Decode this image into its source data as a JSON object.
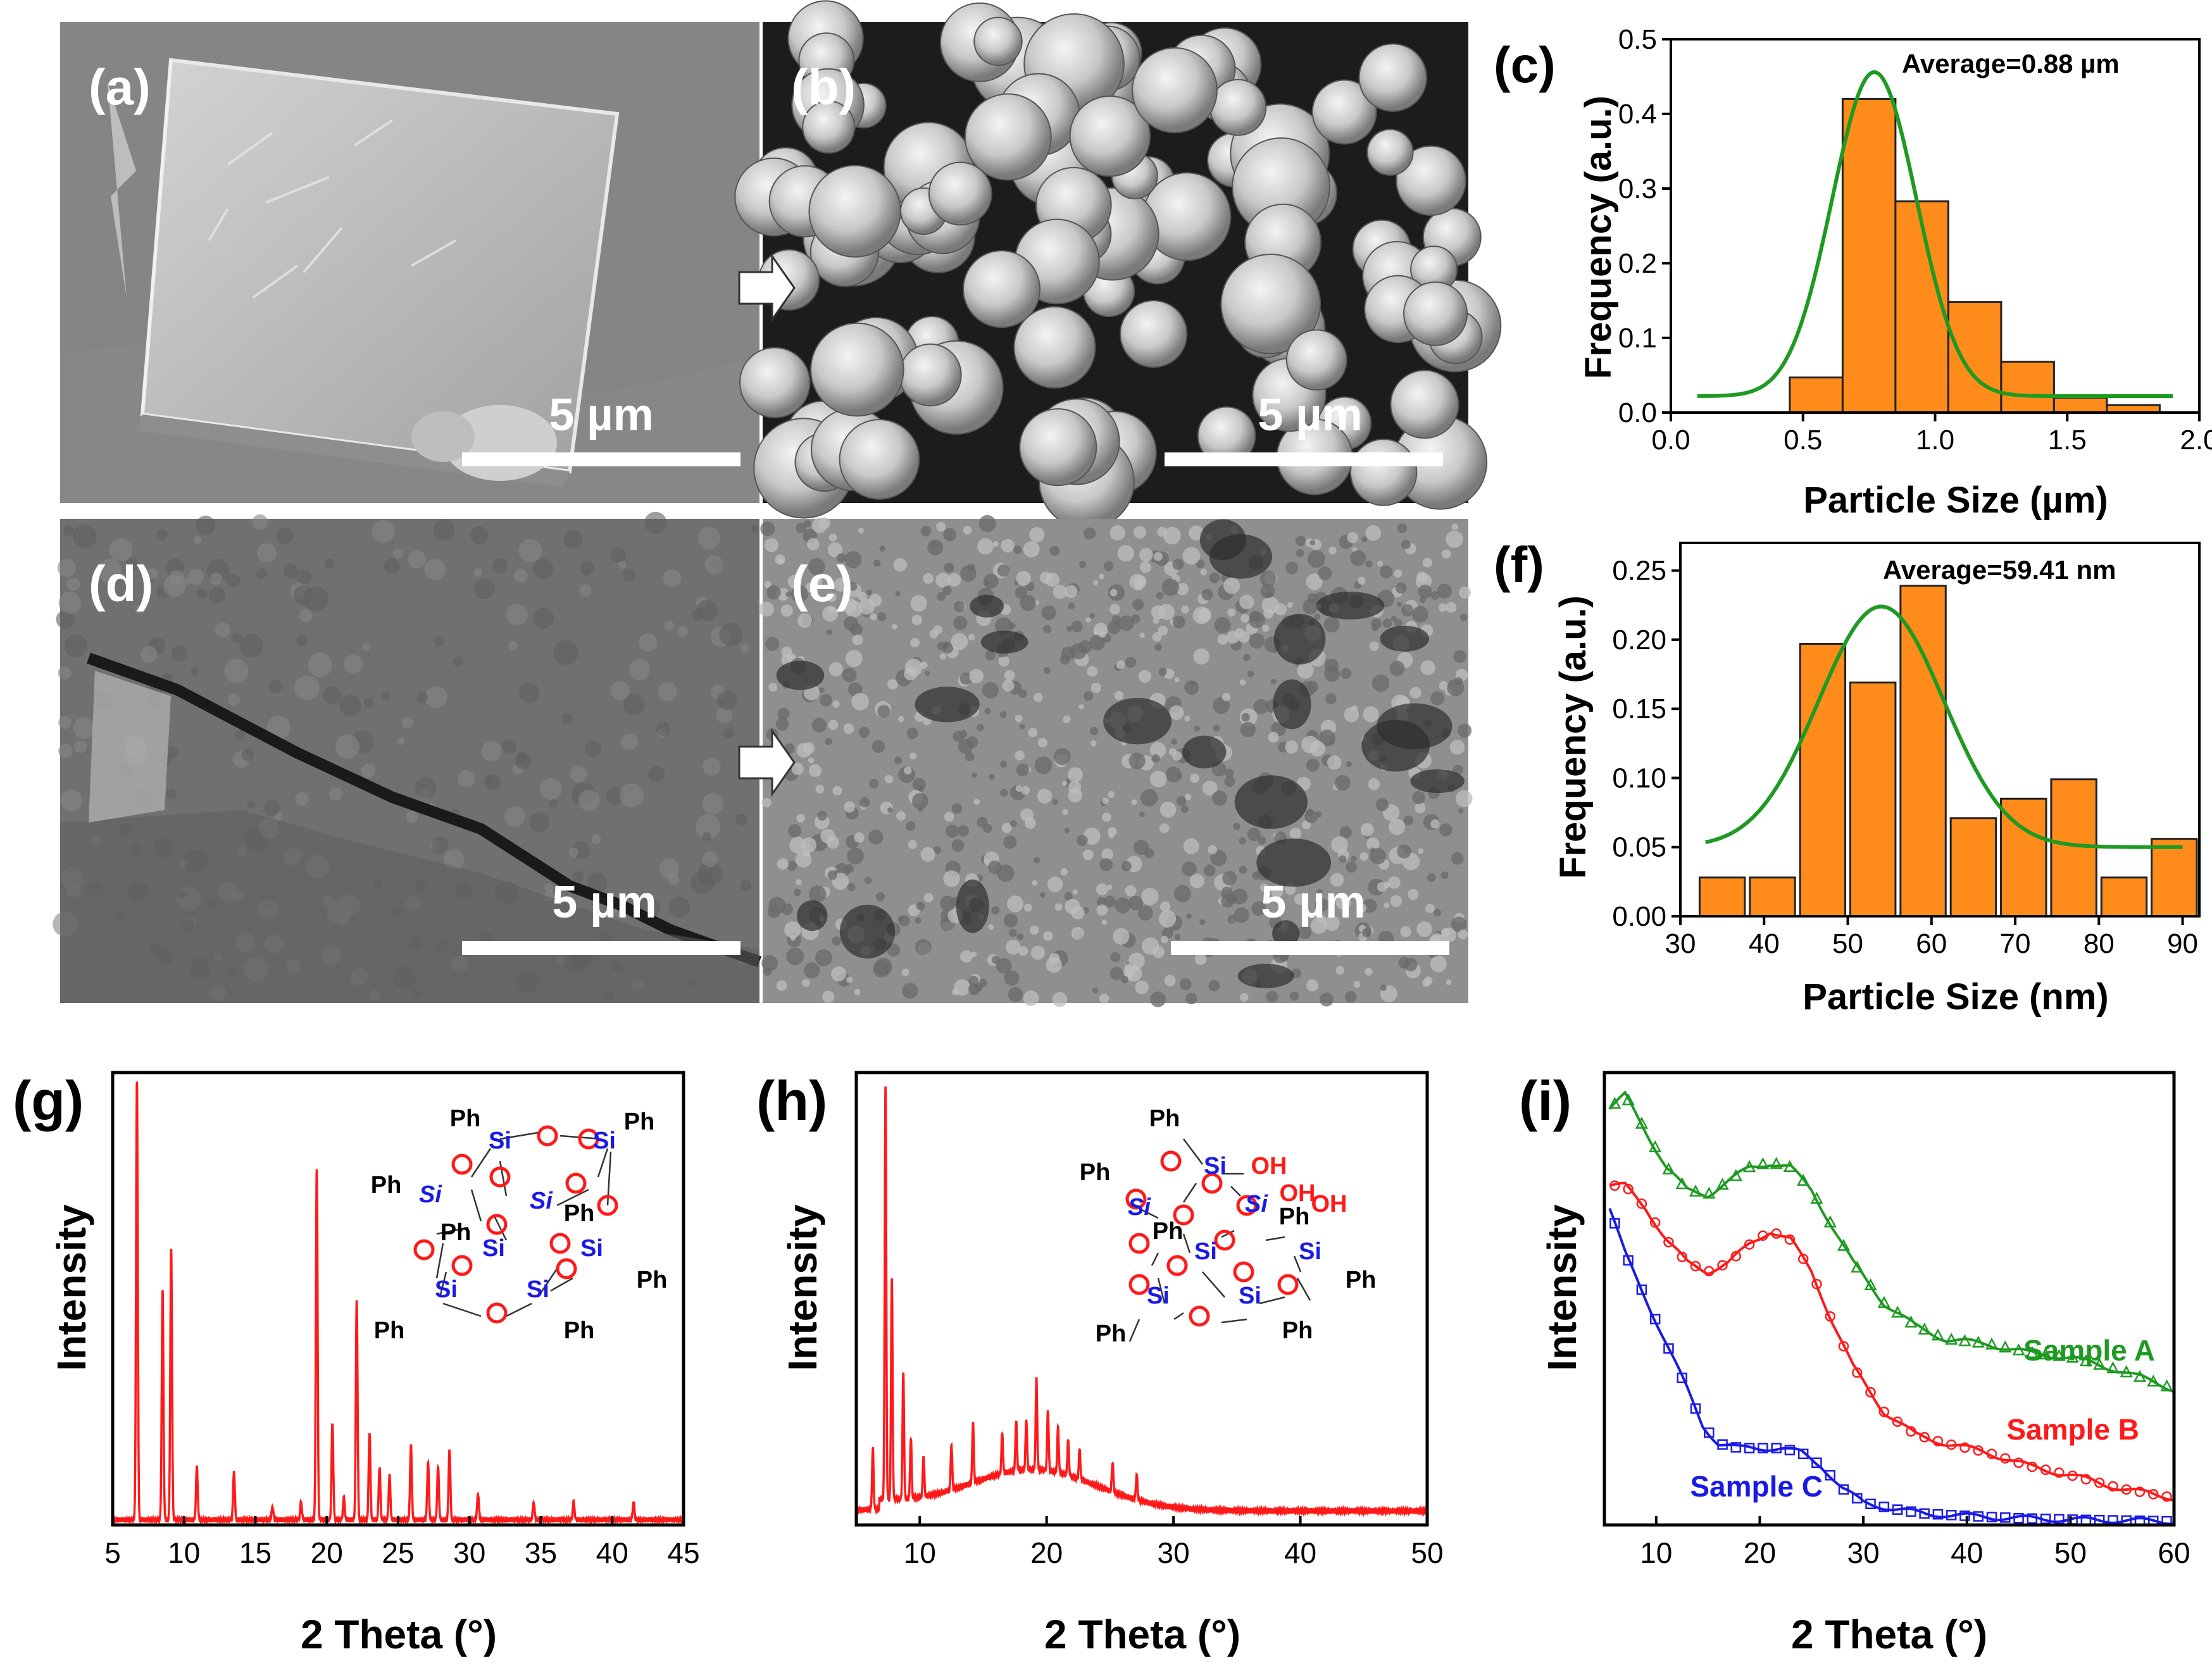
{
  "sem_panels": [
    {
      "id": "a",
      "label": "(a)",
      "scale": "5 µm",
      "texture": "crystal"
    },
    {
      "id": "b",
      "label": "(b)",
      "scale": "5 µm",
      "texture": "spheres"
    },
    {
      "id": "d",
      "label": "(d)",
      "scale": "5 µm",
      "texture": "cracked"
    },
    {
      "id": "e",
      "label": "(e)",
      "scale": "5 µm",
      "texture": "porous"
    }
  ],
  "chart_data": [
    {
      "id": "c",
      "panel_label": "(c)",
      "type": "bar",
      "x": [
        0.55,
        0.75,
        0.95,
        1.15,
        1.35,
        1.55,
        1.75
      ],
      "values": [
        0.047,
        0.42,
        0.283,
        0.148,
        0.068,
        0.02,
        0.01
      ],
      "bar_width": 0.2,
      "fit": {
        "type": "gaussian",
        "baseline": 0.022,
        "amplitude": 0.434,
        "center": 0.77,
        "sigma": 0.16,
        "x_range": [
          0.1,
          1.9
        ]
      },
      "annotation": "Average=0.88 µm",
      "xlabel": "Particle Size (µm)",
      "ylabel": "Frequency (a.u.)",
      "xlim": [
        0.0,
        2.0
      ],
      "ylim": [
        0.0,
        0.5
      ],
      "xticks": [
        "0.0",
        "0.5",
        "1.0",
        "1.5",
        "2.0"
      ],
      "yticks": [
        "0.0",
        "0.1",
        "0.2",
        "0.3",
        "0.4",
        "0.5"
      ],
      "colors": {
        "bar": "#FF8C1A",
        "fit": "#1E9A22"
      }
    },
    {
      "id": "f",
      "panel_label": "(f)",
      "type": "bar",
      "x": [
        35,
        41,
        47,
        53,
        59,
        65,
        71,
        77,
        83,
        89
      ],
      "values": [
        0.028,
        0.028,
        0.197,
        0.169,
        0.239,
        0.071,
        0.085,
        0.099,
        0.028,
        0.056
      ],
      "bar_width": 5.4,
      "fit": {
        "type": "gaussian",
        "baseline": 0.05,
        "amplitude": 0.174,
        "center": 54,
        "sigma": 7.5,
        "x_range": [
          33,
          90
        ]
      },
      "annotation": "Average=59.41 nm",
      "xlabel": "Particle Size (nm)",
      "ylabel": "Frequency (a.u.)",
      "xlim": [
        30,
        92
      ],
      "ylim": [
        0.0,
        0.27
      ],
      "xticks": [
        "30",
        "40",
        "50",
        "60",
        "70",
        "80",
        "90"
      ],
      "yticks": [
        "0.00",
        "0.05",
        "0.10",
        "0.15",
        "0.20",
        "0.25"
      ],
      "colors": {
        "bar": "#FF8C1A",
        "fit": "#1E9A22"
      }
    },
    {
      "id": "g",
      "panel_label": "(g)",
      "type": "line",
      "peaks": [
        [
          6.7,
          1.0
        ],
        [
          8.5,
          0.52
        ],
        [
          9.1,
          0.62
        ],
        [
          10.9,
          0.12
        ],
        [
          13.5,
          0.11
        ],
        [
          16.2,
          0.03
        ],
        [
          18.2,
          0.04
        ],
        [
          19.3,
          0.8
        ],
        [
          20.4,
          0.22
        ],
        [
          21.2,
          0.05
        ],
        [
          22.1,
          0.5
        ],
        [
          23.0,
          0.2
        ],
        [
          23.7,
          0.12
        ],
        [
          24.4,
          0.1
        ],
        [
          25.9,
          0.17
        ],
        [
          27.1,
          0.13
        ],
        [
          27.8,
          0.12
        ],
        [
          28.6,
          0.16
        ],
        [
          30.6,
          0.06
        ],
        [
          34.5,
          0.04
        ],
        [
          37.3,
          0.04
        ],
        [
          41.5,
          0.04
        ]
      ],
      "baseline": 0.012,
      "xlabel": "2 Theta (°)",
      "ylabel": "Intensity",
      "xlim": [
        5,
        45
      ],
      "ylim": [
        0,
        1.03
      ],
      "xticks": [
        "5",
        "10",
        "15",
        "20",
        "25",
        "30",
        "35",
        "40",
        "45"
      ],
      "series": [
        {
          "values": "peaks"
        }
      ],
      "inset": "octaphenyl POSS cage (T8)",
      "colors": {
        "line": "#FF1A1A"
      }
    },
    {
      "id": "h",
      "panel_label": "(h)",
      "type": "line",
      "peaks": [
        [
          6.3,
          0.12
        ],
        [
          7.3,
          0.82
        ],
        [
          7.8,
          0.44
        ],
        [
          8.7,
          0.25
        ],
        [
          9.3,
          0.12
        ],
        [
          10.3,
          0.08
        ],
        [
          12.5,
          0.09
        ],
        [
          14.2,
          0.12
        ],
        [
          16.5,
          0.08
        ],
        [
          17.6,
          0.1
        ],
        [
          18.4,
          0.1
        ],
        [
          19.2,
          0.18
        ],
        [
          20.1,
          0.12
        ],
        [
          20.9,
          0.09
        ],
        [
          21.7,
          0.07
        ],
        [
          22.6,
          0.06
        ],
        [
          25.2,
          0.06
        ],
        [
          27.1,
          0.05
        ]
      ],
      "hump": {
        "amplitude": 0.08,
        "center": 19,
        "sigma": 5
      },
      "baseline": 0.028,
      "xlabel": "2 Theta (°)",
      "ylabel": "Intensity",
      "xlim": [
        5,
        50
      ],
      "ylim": [
        0,
        0.9
      ],
      "xticks": [
        "10",
        "20",
        "30",
        "40",
        "50"
      ],
      "series": [
        {
          "values": "peaks"
        }
      ],
      "inset": "trisilanol phenyl POSS",
      "colors": {
        "line": "#FF1A1A"
      }
    },
    {
      "id": "i",
      "panel_label": "(i)",
      "type": "line",
      "xlabel": "2 Theta (°)",
      "ylabel": "Intensity",
      "xlim": [
        5,
        60
      ],
      "ylim": [
        0,
        1
      ],
      "xticks": [
        "10",
        "20",
        "30",
        "40",
        "50",
        "60"
      ],
      "series": [
        {
          "name": "Sample A",
          "color": "#1E9A22",
          "marker": "triangle",
          "x": [
            5.5,
            7,
            9,
            11,
            13,
            15,
            17,
            19,
            21,
            23,
            25,
            27,
            29,
            32,
            35,
            38,
            42,
            46,
            50,
            55,
            60
          ],
          "values": [
            0.92,
            0.95,
            0.87,
            0.79,
            0.74,
            0.73,
            0.76,
            0.79,
            0.8,
            0.79,
            0.74,
            0.66,
            0.58,
            0.49,
            0.44,
            0.41,
            0.4,
            0.38,
            0.37,
            0.34,
            0.3
          ]
        },
        {
          "name": "Sample B",
          "color": "#FF1A1A",
          "marker": "circle",
          "x": [
            5.5,
            7,
            9,
            11,
            13,
            15,
            17,
            19,
            21,
            23,
            25,
            27,
            29,
            32,
            35,
            38,
            42,
            46,
            50,
            55,
            60
          ],
          "values": [
            0.75,
            0.75,
            0.7,
            0.63,
            0.58,
            0.56,
            0.58,
            0.62,
            0.65,
            0.63,
            0.56,
            0.45,
            0.35,
            0.25,
            0.2,
            0.18,
            0.16,
            0.13,
            0.11,
            0.08,
            0.06
          ]
        },
        {
          "name": "Sample C",
          "color": "#1A1AE6",
          "marker": "square",
          "x": [
            5.5,
            7,
            9,
            11,
            13,
            14.5,
            16,
            18,
            20,
            22,
            24,
            26,
            28,
            30,
            33,
            36,
            40,
            45,
            50,
            55,
            60
          ],
          "values": [
            0.7,
            0.6,
            0.5,
            0.4,
            0.3,
            0.22,
            0.18,
            0.17,
            0.17,
            0.17,
            0.16,
            0.13,
            0.08,
            0.05,
            0.035,
            0.025,
            0.02,
            0.015,
            0.012,
            0.01,
            0.008
          ]
        }
      ]
    }
  ],
  "inset_g": {
    "ph": "Ph",
    "si": "Si",
    "o": "O",
    "colors": {
      "si": "#1A1AE6",
      "o": "#FF1A1A",
      "ph": "#000000"
    }
  },
  "inset_h": {
    "ph": "Ph",
    "si": "Si",
    "o": "O",
    "oh": "OH",
    "colors": {
      "si": "#1A1AE6",
      "o": "#FF1A1A",
      "oh": "#FF1A1A",
      "ph": "#000000"
    }
  }
}
